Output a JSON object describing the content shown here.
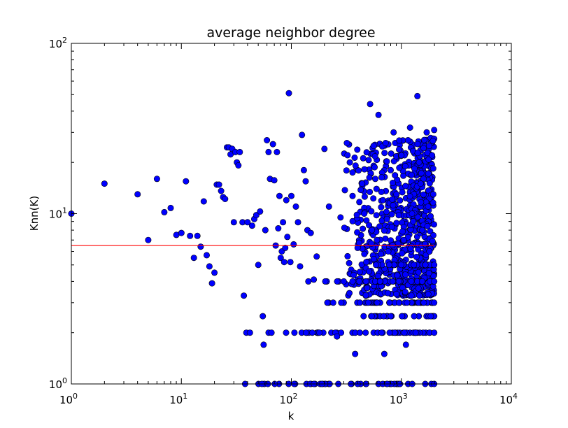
{
  "chart_data": {
    "type": "scatter",
    "title": "average neighbor degree",
    "xlabel": "k",
    "ylabel": "Knn(K)",
    "xscale": "log",
    "yscale": "log",
    "xlim": [
      1,
      10000
    ],
    "ylim": [
      1,
      100
    ],
    "grid": false,
    "x_ticks": [
      {
        "base": "10",
        "exp": "0"
      },
      {
        "base": "10",
        "exp": "1"
      },
      {
        "base": "10",
        "exp": "2"
      },
      {
        "base": "10",
        "exp": "3"
      },
      {
        "base": "10",
        "exp": "4"
      }
    ],
    "y_ticks": [
      {
        "base": "10",
        "exp": "0"
      },
      {
        "base": "10",
        "exp": "1"
      },
      {
        "base": "10",
        "exp": "2"
      }
    ],
    "fit_line": {
      "y": 6.5,
      "x_start": 1,
      "x_end": 1990,
      "color": "#ff0000"
    },
    "marker_color": "#0000ff",
    "marker_edge_color": "#000000",
    "points": [
      [
        1,
        10
      ],
      [
        2,
        15
      ],
      [
        4,
        13
      ],
      [
        5,
        7
      ],
      [
        6,
        16
      ],
      [
        7,
        10.2
      ],
      [
        8,
        10.8
      ],
      [
        9,
        7.5
      ],
      [
        10,
        7.7
      ],
      [
        11,
        15.5
      ],
      [
        12,
        7.4
      ],
      [
        13,
        5.5
      ],
      [
        14,
        7.4
      ],
      [
        15,
        6.4
      ],
      [
        16,
        11.8
      ],
      [
        17,
        5.7
      ],
      [
        18,
        4.9
      ],
      [
        19,
        3.9
      ],
      [
        20,
        4.5
      ],
      [
        21,
        14.8
      ],
      [
        22,
        14.8
      ],
      [
        23,
        13.6
      ],
      [
        24,
        12.5
      ],
      [
        25,
        12.2
      ],
      [
        26,
        24.5
      ],
      [
        27,
        24.5
      ],
      [
        28,
        22.3
      ],
      [
        29,
        24
      ],
      [
        30,
        8.9
      ],
      [
        31,
        23
      ],
      [
        32,
        20
      ],
      [
        33,
        19.2
      ],
      [
        34,
        23
      ],
      [
        36,
        8.9
      ],
      [
        37,
        3.3
      ],
      [
        38,
        1
      ],
      [
        39,
        2
      ],
      [
        40,
        8.9
      ],
      [
        42,
        2
      ],
      [
        44,
        8.5
      ],
      [
        46,
        9.3
      ],
      [
        48,
        9.8
      ],
      [
        50,
        5
      ],
      [
        52,
        10.3
      ],
      [
        54,
        1
      ],
      [
        55,
        2.5
      ],
      [
        56,
        1.7
      ],
      [
        58,
        8
      ],
      [
        60,
        27
      ],
      [
        62,
        23
      ],
      [
        64,
        16
      ],
      [
        66,
        2
      ],
      [
        68,
        25.6
      ],
      [
        70,
        15.7
      ],
      [
        72,
        6.5
      ],
      [
        74,
        23
      ],
      [
        76,
        8.2
      ],
      [
        78,
        12.7
      ],
      [
        80,
        5.5
      ],
      [
        82,
        6
      ],
      [
        84,
        8.9
      ],
      [
        86,
        5.2
      ],
      [
        88,
        6.3
      ],
      [
        90,
        12
      ],
      [
        92,
        7.3
      ],
      [
        95,
        51
      ],
      [
        98,
        5.2
      ],
      [
        100,
        12.7
      ],
      [
        105,
        6.6
      ],
      [
        110,
        11
      ],
      [
        115,
        8.9
      ],
      [
        120,
        4.9
      ],
      [
        125,
        29
      ],
      [
        130,
        18
      ],
      [
        135,
        15.5
      ],
      [
        140,
        8
      ],
      [
        150,
        7.7
      ],
      [
        160,
        4.1
      ],
      [
        170,
        5.6
      ],
      [
        180,
        2
      ],
      [
        190,
        1
      ],
      [
        200,
        24
      ],
      [
        220,
        11
      ],
      [
        240,
        3
      ],
      [
        260,
        1.9
      ],
      [
        280,
        9.5
      ],
      [
        300,
        4
      ],
      [
        320,
        26
      ],
      [
        340,
        20
      ],
      [
        360,
        12.7
      ],
      [
        380,
        1.5
      ],
      [
        400,
        6.3
      ],
      [
        420,
        2
      ],
      [
        440,
        15
      ],
      [
        460,
        10
      ],
      [
        480,
        1
      ],
      [
        500,
        3
      ],
      [
        520,
        44
      ],
      [
        540,
        8
      ],
      [
        560,
        25
      ],
      [
        580,
        16
      ],
      [
        600,
        7
      ],
      [
        620,
        38
      ],
      [
        640,
        4
      ],
      [
        660,
        2
      ],
      [
        680,
        12
      ],
      [
        700,
        1.5
      ],
      [
        720,
        26
      ],
      [
        740,
        9.3
      ],
      [
        760,
        6
      ],
      [
        780,
        3
      ],
      [
        800,
        18
      ],
      [
        850,
        30
      ],
      [
        900,
        13
      ],
      [
        950,
        4
      ],
      [
        1000,
        22
      ],
      [
        1050,
        7
      ],
      [
        1100,
        1.7
      ],
      [
        1150,
        27
      ],
      [
        1200,
        32
      ],
      [
        1250,
        10
      ],
      [
        1300,
        5
      ],
      [
        1350,
        2
      ],
      [
        1400,
        49
      ],
      [
        1450,
        20
      ],
      [
        1500,
        15
      ],
      [
        1550,
        8
      ],
      [
        1600,
        3
      ],
      [
        1650,
        1
      ],
      [
        1700,
        30
      ],
      [
        1750,
        11
      ],
      [
        1800,
        6
      ],
      [
        1850,
        2.5
      ],
      [
        1900,
        22
      ],
      [
        1950,
        13
      ],
      [
        1990,
        31
      ]
    ],
    "band_rows": [
      {
        "y": 1,
        "x_min": 36,
        "x_max": 1990,
        "n": 40
      },
      {
        "y": 2,
        "x_min": 37,
        "x_max": 1990,
        "n": 45
      },
      {
        "y": 2.5,
        "x_min": 300,
        "x_max": 1990,
        "n": 22
      },
      {
        "y": 3,
        "x_min": 180,
        "x_max": 1990,
        "n": 40
      },
      {
        "y": 4,
        "x_min": 140,
        "x_max": 1990,
        "n": 38
      },
      {
        "y": 5,
        "x_min": 300,
        "x_max": 1990,
        "n": 28
      }
    ],
    "dense_cluster": {
      "x_min": 300,
      "x_max": 1990,
      "y_min": 3.3,
      "y_max": 28,
      "n": 700
    }
  }
}
